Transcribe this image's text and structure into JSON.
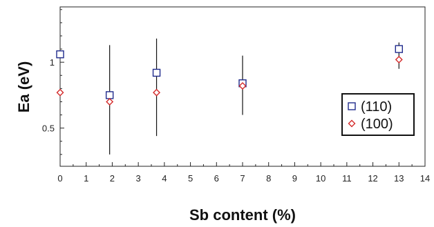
{
  "chart_data": {
    "type": "scatter",
    "title": "",
    "xlabel": "Sb content (%)",
    "ylabel": "Ea (eV)",
    "xlim": [
      0,
      14
    ],
    "ylim": [
      0.21,
      1.42
    ],
    "x_ticks": [
      0,
      1,
      2,
      3,
      4,
      5,
      6,
      7,
      8,
      9,
      10,
      11,
      12,
      13,
      14
    ],
    "y_ticks": [
      0.5,
      1
    ],
    "y_tick_labels": [
      "0.5",
      "1"
    ],
    "grid": false,
    "legend_position": "lower-right",
    "series": [
      {
        "name": "(110)",
        "marker": "square",
        "color": "#1f2a8c",
        "points": [
          {
            "x": 0.0,
            "y": 1.06
          },
          {
            "x": 1.9,
            "y": 0.75,
            "err_low": 0.3,
            "err_high": 1.13
          },
          {
            "x": 3.7,
            "y": 0.92,
            "err_low": 0.44,
            "err_high": 1.18
          },
          {
            "x": 7.0,
            "y": 0.84,
            "err_low": 0.6,
            "err_high": 1.05
          },
          {
            "x": 13.0,
            "y": 1.1,
            "err_low": 0.95,
            "err_high": 1.15
          }
        ]
      },
      {
        "name": "(100)",
        "marker": "diamond",
        "color": "#d42a2a",
        "points": [
          {
            "x": 0.0,
            "y": 0.77
          },
          {
            "x": 1.9,
            "y": 0.7
          },
          {
            "x": 3.7,
            "y": 0.77
          },
          {
            "x": 7.0,
            "y": 0.82
          },
          {
            "x": 13.0,
            "y": 1.02
          }
        ]
      }
    ]
  }
}
